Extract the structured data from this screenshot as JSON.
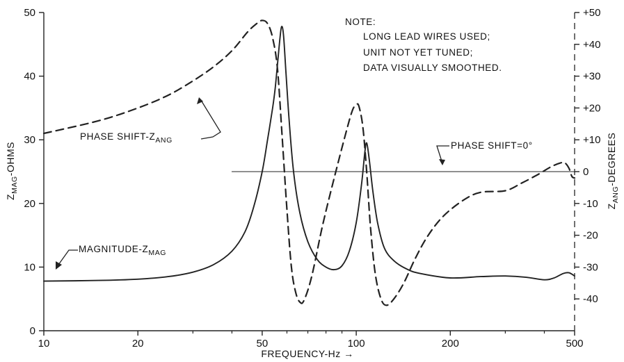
{
  "chart_data": {
    "type": "line",
    "xscale": "log",
    "xlim": [
      10,
      500
    ],
    "xticks": [
      10,
      20,
      50,
      100,
      200,
      500
    ],
    "xtick_labels": [
      "10",
      "20",
      "50",
      "100",
      "200",
      "500"
    ],
    "xlabel": "FREQUENCY-Hz",
    "xlabel_arrow": "→",
    "ylim": [
      0,
      50
    ],
    "yticks": [
      0,
      10,
      20,
      30,
      40,
      50
    ],
    "ytick_labels": [
      "0",
      "10",
      "20",
      "30",
      "40",
      "50"
    ],
    "ylabel_main": "Z",
    "ylabel_sub": "MAG",
    "ylabel_rest": "-OHMS",
    "y2lim": [
      -50,
      50
    ],
    "y2ticks": [
      50,
      40,
      30,
      20,
      10,
      0,
      -10,
      -20,
      -30,
      -40
    ],
    "y2tick_labels": [
      "+50",
      "+40",
      "+30",
      "+20",
      "+10",
      "0",
      "-10",
      "-20",
      "-30",
      "-40"
    ],
    "y2label_main": "Z",
    "y2label_sub": "ANG",
    "y2label_rest": "-DEGREES",
    "grid": false,
    "series": [
      {
        "name": "MAGNITUDE-ZMAG",
        "axis": "left",
        "style": "solid",
        "points": [
          [
            10,
            7.8
          ],
          [
            15,
            7.9
          ],
          [
            20,
            8.1
          ],
          [
            25,
            8.5
          ],
          [
            30,
            9.2
          ],
          [
            35,
            10.4
          ],
          [
            40,
            12.5
          ],
          [
            44,
            15.5
          ],
          [
            47,
            19.5
          ],
          [
            50,
            25
          ],
          [
            52,
            30
          ],
          [
            54,
            35
          ],
          [
            55,
            38
          ],
          [
            56,
            42
          ],
          [
            57,
            46
          ],
          [
            57.7,
            47.8
          ],
          [
            58.5,
            46.5
          ],
          [
            59.5,
            41
          ],
          [
            61,
            33
          ],
          [
            63,
            25
          ],
          [
            66,
            18.5
          ],
          [
            70,
            14
          ],
          [
            75,
            11.2
          ],
          [
            80,
            10
          ],
          [
            85,
            9.6
          ],
          [
            90,
            10.2
          ],
          [
            95,
            12.5
          ],
          [
            100,
            17
          ],
          [
            104,
            23
          ],
          [
            106.5,
            28
          ],
          [
            108,
            29.5
          ],
          [
            110,
            27
          ],
          [
            113,
            22
          ],
          [
            117,
            17
          ],
          [
            123,
            13
          ],
          [
            132,
            11
          ],
          [
            145,
            9.7
          ],
          [
            160,
            9
          ],
          [
            200,
            8.3
          ],
          [
            250,
            8.5
          ],
          [
            300,
            8.6
          ],
          [
            350,
            8.4
          ],
          [
            400,
            8
          ],
          [
            430,
            8.3
          ],
          [
            460,
            9
          ],
          [
            480,
            9.1
          ],
          [
            500,
            8.6
          ]
        ]
      },
      {
        "name": "PHASE SHIFT-ZANG",
        "axis": "right",
        "style": "dashed",
        "points": [
          [
            10,
            12
          ],
          [
            15,
            16
          ],
          [
            20,
            20
          ],
          [
            25,
            24
          ],
          [
            30,
            28.5
          ],
          [
            35,
            33
          ],
          [
            40,
            38
          ],
          [
            45,
            44
          ],
          [
            48,
            46.5
          ],
          [
            50,
            47.5
          ],
          [
            52,
            46.5
          ],
          [
            54,
            42
          ],
          [
            56,
            32
          ],
          [
            58,
            10
          ],
          [
            60,
            -12
          ],
          [
            62,
            -30
          ],
          [
            64,
            -38
          ],
          [
            66,
            -41
          ],
          [
            68,
            -40.5
          ],
          [
            72,
            -33
          ],
          [
            78,
            -17
          ],
          [
            85,
            -2
          ],
          [
            92,
            11
          ],
          [
            97,
            19
          ],
          [
            100,
            21
          ],
          [
            102,
            20.5
          ],
          [
            105,
            14
          ],
          [
            108,
            0
          ],
          [
            111,
            -17
          ],
          [
            115,
            -32
          ],
          [
            120,
            -40
          ],
          [
            125,
            -42
          ],
          [
            132,
            -40
          ],
          [
            142,
            -35
          ],
          [
            155,
            -27
          ],
          [
            170,
            -20
          ],
          [
            190,
            -14
          ],
          [
            220,
            -9
          ],
          [
            250,
            -6.5
          ],
          [
            300,
            -6
          ],
          [
            340,
            -3.5
          ],
          [
            380,
            -1
          ],
          [
            420,
            1.5
          ],
          [
            450,
            2.7
          ],
          [
            465,
            2.8
          ],
          [
            480,
            1
          ],
          [
            490,
            -1.5
          ],
          [
            500,
            -2
          ]
        ]
      },
      {
        "name": "PHASE SHIFT=0°",
        "axis": "right",
        "style": "thin-reference",
        "points": [
          [
            40,
            0
          ],
          [
            500,
            0
          ]
        ]
      }
    ],
    "annotations": {
      "phase": {
        "text": "PHASE SHIFT-Z",
        "sub": "ANG"
      },
      "magnitude": {
        "text": "MAGNITUDE-Z",
        "sub": "MAG"
      },
      "zero": {
        "text": "PHASE SHIFT=0°"
      },
      "note": [
        "NOTE:",
        "LONG LEAD WIRES USED;",
        "UNIT NOT YET TUNED;",
        "DATA VISUALLY SMOOTHED."
      ]
    }
  }
}
